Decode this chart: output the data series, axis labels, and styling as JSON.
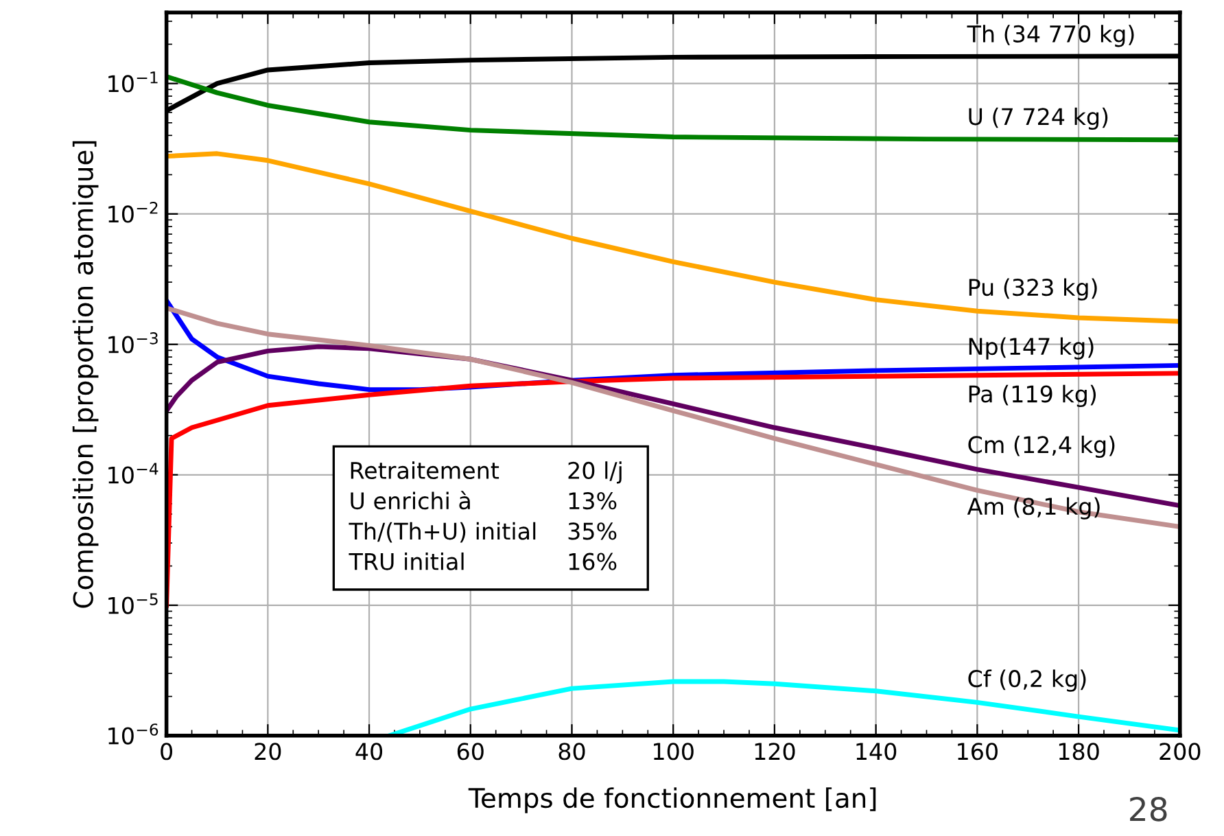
{
  "chart_data": {
    "type": "line",
    "xlabel": "Temps de fonctionnement [an]",
    "ylabel": "Composition [proportion atomique]",
    "log": "y",
    "grid": true,
    "marker": "none",
    "line_style": "solid",
    "xlim": [
      0,
      200
    ],
    "xticks": [
      0,
      20,
      40,
      60,
      80,
      100,
      120,
      140,
      160,
      180,
      200
    ],
    "ylim": [
      1e-06,
      0.35
    ],
    "yticks": [
      {
        "value": 1e-06,
        "label": "10$^{−6}$"
      },
      {
        "value": 1e-05,
        "label": "10$^{−5}$"
      },
      {
        "value": 0.0001,
        "label": "10$^{−4}$"
      },
      {
        "value": 0.001,
        "label": "10$^{−3}$"
      },
      {
        "value": 0.01,
        "label": "10$^{−2}$"
      },
      {
        "value": 0.1,
        "label": "10$^{−1}$"
      }
    ],
    "series": [
      {
        "name": "Th (34 770 kg)",
        "color": "#000000",
        "x": [
          0,
          10,
          20,
          40,
          60,
          100,
          150,
          200
        ],
        "values": [
          0.062,
          0.1,
          0.127,
          0.144,
          0.151,
          0.159,
          0.161,
          0.162
        ]
      },
      {
        "name": "U (7 724 kg)",
        "color": "#008000",
        "x": [
          0,
          10,
          20,
          40,
          60,
          100,
          150,
          200
        ],
        "values": [
          0.113,
          0.085,
          0.068,
          0.0507,
          0.0439,
          0.0389,
          0.0375,
          0.037
        ]
      },
      {
        "name": "Pu (323 kg)",
        "color": "#ffa500",
        "x": [
          0,
          10,
          20,
          40,
          60,
          80,
          100,
          120,
          140,
          160,
          180,
          200
        ],
        "values": [
          0.0277,
          0.029,
          0.0257,
          0.017,
          0.0105,
          0.0065,
          0.0043,
          0.003,
          0.0022,
          0.0018,
          0.0016,
          0.0015
        ]
      },
      {
        "name": "Np(147 kg)",
        "color": "#0000ff",
        "x": [
          0,
          5,
          10,
          20,
          30,
          40,
          50,
          60,
          80,
          100,
          140,
          200
        ],
        "values": [
          0.00217,
          0.0011,
          0.0008,
          0.00057,
          0.0005,
          0.00045,
          0.00045,
          0.00047,
          0.00053,
          0.00058,
          0.00063,
          0.00069
        ]
      },
      {
        "name": "Pa (119 kg)",
        "color": "#ff0000",
        "x": [
          0,
          1,
          5,
          20,
          40,
          60,
          80,
          100,
          200
        ],
        "values": [
          1e-05,
          0.00019,
          0.00023,
          0.00034,
          0.00041,
          0.00048,
          0.00052,
          0.00055,
          0.0006
        ]
      },
      {
        "name": "Cm (12,4 kg)",
        "color": "#600060",
        "x": [
          0,
          2,
          5,
          10,
          20,
          30,
          40,
          60,
          80,
          100,
          120,
          140,
          160,
          180,
          200
        ],
        "values": [
          0.00031,
          0.0004,
          0.00053,
          0.00073,
          0.00089,
          0.00096,
          0.00093,
          0.00077,
          0.00053,
          0.00035,
          0.00023,
          0.00016,
          0.00011,
          8e-05,
          5.8e-05
        ]
      },
      {
        "name": "Am (8,1 kg)",
        "color": "#c09090",
        "x": [
          0,
          10,
          20,
          40,
          60,
          80,
          100,
          120,
          140,
          160,
          180,
          200
        ],
        "values": [
          0.0019,
          0.00145,
          0.0012,
          0.00098,
          0.00077,
          0.00051,
          0.00031,
          0.00019,
          0.00012,
          7.6e-05,
          5.2e-05,
          4e-05
        ]
      },
      {
        "name": "Cf (0,2 kg)",
        "color": "#00ffff",
        "x": [
          44,
          60,
          80,
          100,
          110,
          120,
          140,
          160,
          180,
          200
        ],
        "values": [
          1e-06,
          1.6e-06,
          2.3e-06,
          2.6e-06,
          2.6e-06,
          2.5e-06,
          2.2e-06,
          1.8e-06,
          1.4e-06,
          1.1e-06
        ]
      }
    ],
    "annotations": [
      "Retraitement",
      "20 l/j",
      "U enrichi à",
      "13%",
      "Th/(Th+U) initial",
      "35%",
      "TRU initial",
      "16%",
      "28"
    ]
  }
}
